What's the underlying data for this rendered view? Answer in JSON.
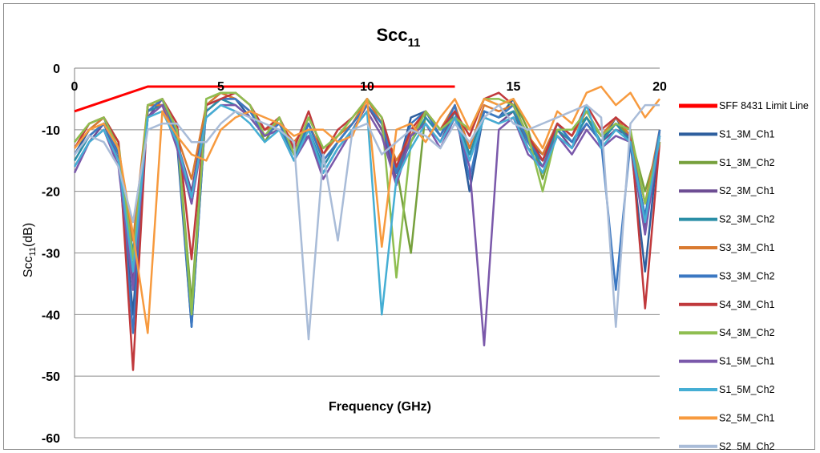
{
  "chart_data": {
    "type": "line",
    "title": "Scc",
    "title_sub": "11",
    "xlabel": "Frequency (GHz)",
    "ylabel": "Scc",
    "ylabel_sub": "11",
    "ylabel_unit": "(dB)",
    "xlim": [
      0,
      20
    ],
    "ylim": [
      -60,
      0
    ],
    "x_ticks": [
      0,
      5,
      10,
      15,
      20
    ],
    "y_ticks": [
      0,
      -10,
      -20,
      -30,
      -40,
      -50,
      -60
    ],
    "x_tick_labels": [
      "0",
      "5",
      "10",
      "15",
      "20"
    ],
    "y_tick_labels": [
      "0",
      "-10",
      "-20",
      "-30",
      "-40",
      "-50",
      "-60"
    ],
    "grid": "horizontal",
    "legend_position": "right",
    "x": [
      0,
      0.5,
      1,
      1.5,
      2,
      2.5,
      3,
      3.5,
      4,
      4.5,
      5,
      5.5,
      6,
      6.5,
      7,
      7.5,
      8,
      8.5,
      9,
      9.5,
      10,
      10.5,
      11,
      11.5,
      12,
      12.5,
      13,
      13.5,
      14,
      14.5,
      15,
      15.5,
      16,
      16.5,
      17,
      17.5,
      18,
      18.5,
      19,
      19.5,
      20
    ],
    "series": [
      {
        "name": "SFF 8431 Limit Line",
        "color": "#ff0000",
        "x": [
          0,
          2.5,
          13
        ],
        "values": [
          -7,
          -3,
          -3
        ]
      },
      {
        "name": "S1_3M_Ch1",
        "color": "#2e5f9e",
        "values": [
          -14,
          -10,
          -8,
          -14,
          -40,
          -6,
          -6,
          -12,
          -42,
          -6,
          -4,
          -5,
          -8,
          -11,
          -10,
          -15,
          -9,
          -15,
          -12,
          -9,
          -5,
          -9,
          -17,
          -8,
          -7,
          -11,
          -6,
          -20,
          -7,
          -8,
          -5,
          -12,
          -14,
          -9,
          -12,
          -8,
          -12,
          -8,
          -12,
          -33,
          -10
        ]
      },
      {
        "name": "S1_3M_Ch2",
        "color": "#76a03c",
        "values": [
          -12,
          -9,
          -8,
          -12,
          -33,
          -6,
          -5,
          -10,
          -38,
          -5,
          -4,
          -4,
          -6,
          -12,
          -8,
          -14,
          -8,
          -13,
          -11,
          -8,
          -5,
          -8,
          -16,
          -30,
          -7,
          -10,
          -8,
          -10,
          -5,
          -6,
          -5,
          -10,
          -18,
          -10,
          -10,
          -8,
          -11,
          -9,
          -11,
          -20,
          -12
        ]
      },
      {
        "name": "S2_3M_Ch1",
        "color": "#6d4d93",
        "values": [
          -16,
          -12,
          -9,
          -15,
          -35,
          -8,
          -5,
          -12,
          -20,
          -7,
          -5,
          -5,
          -7,
          -10,
          -9,
          -13,
          -11,
          -17,
          -13,
          -10,
          -6,
          -10,
          -18,
          -10,
          -9,
          -12,
          -7,
          -15,
          -8,
          -9,
          -7,
          -13,
          -15,
          -10,
          -13,
          -9,
          -12,
          -10,
          -11,
          -26,
          -11
        ]
      },
      {
        "name": "S2_3M_Ch2",
        "color": "#2a8ea6",
        "values": [
          -15,
          -11,
          -9,
          -14,
          -30,
          -7,
          -6,
          -12,
          -22,
          -7,
          -5,
          -6,
          -8,
          -11,
          -10,
          -14,
          -10,
          -16,
          -12,
          -9,
          -6,
          -9,
          -17,
          -12,
          -8,
          -11,
          -7,
          -14,
          -7,
          -8,
          -7,
          -12,
          -16,
          -10,
          -12,
          -8,
          -12,
          -9,
          -12,
          -24,
          -11
        ]
      },
      {
        "name": "S3_3M_Ch1",
        "color": "#d97a30",
        "values": [
          -13,
          -10,
          -8,
          -13,
          -28,
          -6,
          -6,
          -11,
          -18,
          -6,
          -4,
          -5,
          -7,
          -10,
          -9,
          -12,
          -9,
          -14,
          -11,
          -9,
          -5,
          -9,
          -15,
          -11,
          -7,
          -10,
          -6,
          -13,
          -6,
          -7,
          -6,
          -11,
          -14,
          -9,
          -11,
          -7,
          -11,
          -8,
          -11,
          -22,
          -10
        ]
      },
      {
        "name": "S3_3M_Ch2",
        "color": "#3b78c2",
        "values": [
          -14,
          -11,
          -9,
          -14,
          -43,
          -7,
          -5,
          -11,
          -42,
          -6,
          -5,
          -5,
          -7,
          -11,
          -9,
          -14,
          -9,
          -15,
          -12,
          -9,
          -6,
          -9,
          -17,
          -9,
          -7,
          -11,
          -6,
          -18,
          -7,
          -8,
          -6,
          -12,
          -15,
          -9,
          -12,
          -9,
          -12,
          -36,
          -12,
          -24,
          -10
        ]
      },
      {
        "name": "S4_3M_Ch1",
        "color": "#c0393c",
        "values": [
          -13,
          -9,
          -8,
          -12,
          -49,
          -6,
          -5,
          -9,
          -31,
          -6,
          -5,
          -4,
          -6,
          -10,
          -8,
          -13,
          -7,
          -14,
          -10,
          -8,
          -5,
          -8,
          -16,
          -10,
          -7,
          -10,
          -7,
          -11,
          -5,
          -4,
          -6,
          -11,
          -15,
          -9,
          -11,
          -6,
          -10,
          -8,
          -10,
          -39,
          -12
        ]
      },
      {
        "name": "S4_3M_Ch2",
        "color": "#8fbe50",
        "values": [
          -12,
          -9,
          -8,
          -13,
          -31,
          -6,
          -5,
          -10,
          -40,
          -5,
          -4,
          -4,
          -6,
          -11,
          -8,
          -14,
          -8,
          -13,
          -11,
          -8,
          -5,
          -8,
          -34,
          -12,
          -7,
          -10,
          -8,
          -10,
          -5,
          -5,
          -6,
          -11,
          -20,
          -10,
          -10,
          -7,
          -11,
          -9,
          -10,
          -22,
          -12
        ]
      },
      {
        "name": "S1_5M_Ch1",
        "color": "#7a58aa",
        "values": [
          -17,
          -12,
          -10,
          -16,
          -36,
          -8,
          -6,
          -13,
          -22,
          -8,
          -6,
          -6,
          -8,
          -11,
          -10,
          -15,
          -11,
          -18,
          -14,
          -10,
          -7,
          -11,
          -19,
          -11,
          -9,
          -13,
          -8,
          -16,
          -45,
          -10,
          -8,
          -14,
          -16,
          -11,
          -14,
          -10,
          -13,
          -11,
          -12,
          -27,
          -11
        ]
      },
      {
        "name": "S1_5M_Ch2",
        "color": "#45aed4",
        "values": [
          -16,
          -12,
          -10,
          -15,
          -33,
          -8,
          -7,
          -12,
          -21,
          -8,
          -6,
          -7,
          -9,
          -12,
          -10,
          -15,
          -10,
          -17,
          -13,
          -10,
          -7,
          -40,
          -18,
          -13,
          -9,
          -12,
          -8,
          -15,
          -8,
          -9,
          -8,
          -13,
          -17,
          -11,
          -13,
          -6,
          -13,
          -10,
          -12,
          -25,
          -11
        ]
      },
      {
        "name": "S2_5M_Ch1",
        "color": "#f79a3e",
        "values": [
          -13,
          -10,
          -9,
          -13,
          -27,
          -43,
          -7,
          -11,
          -14,
          -15,
          -10,
          -8,
          -7,
          -8,
          -9,
          -11,
          -10,
          -10,
          -12,
          -11,
          -5,
          -29,
          -10,
          -9,
          -12,
          -8,
          -5,
          -10,
          -5,
          -6,
          -5,
          -9,
          -13,
          -7,
          -9,
          -4,
          -3,
          -6,
          -4,
          -8,
          -5
        ]
      },
      {
        "name": "S2_5M_Ch2",
        "color": "#a9bcd8",
        "values": [
          -14,
          -11,
          -12,
          -16,
          -25,
          -10,
          -9,
          -9,
          -12,
          -12,
          -9,
          -7,
          -8,
          -9,
          -10,
          -12,
          -44,
          -14,
          -28,
          -10,
          -9,
          -14,
          -12,
          -10,
          -11,
          -13,
          -9,
          -12,
          -8,
          -6,
          -9,
          -10,
          -9,
          -8,
          -7,
          -6,
          -8,
          -42,
          -9,
          -6,
          -6
        ]
      }
    ]
  }
}
